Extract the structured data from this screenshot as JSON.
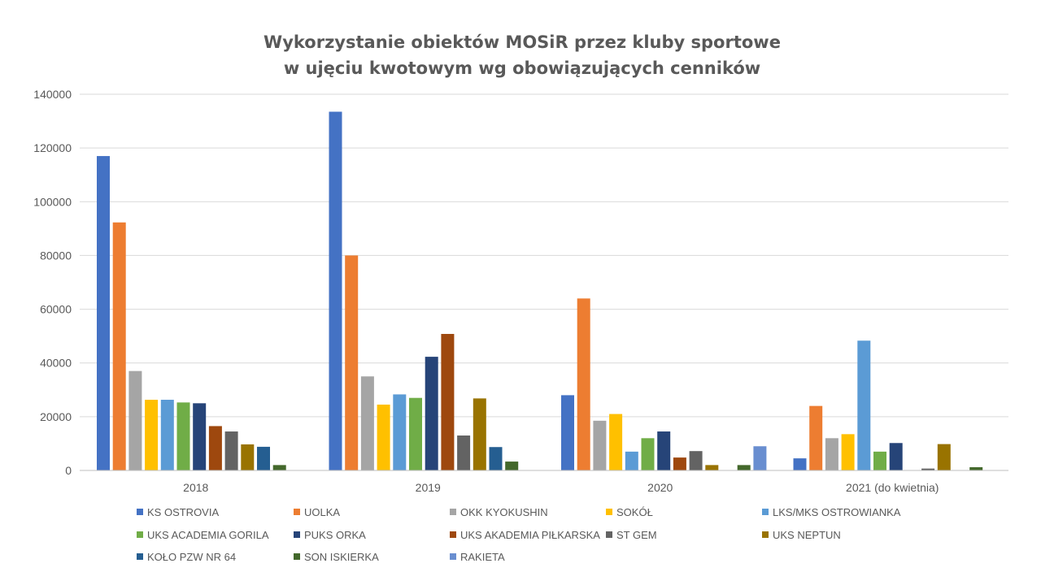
{
  "chart_data": {
    "type": "bar",
    "title": "Wykorzystanie obiektów MOSiR przez kluby sportowe",
    "subtitle": "w ujęciu kwotowym wg obowiązujących cenników",
    "xlabel": "",
    "ylabel": "",
    "ylim": [
      0,
      140000
    ],
    "yticks": [
      "0",
      "20000",
      "40000",
      "60000",
      "80000",
      "100000",
      "120000",
      "140000"
    ],
    "grid": true,
    "legend_position": "bottom",
    "categories": [
      "2018",
      "2019",
      "2020",
      "2021 (do kwietnia)"
    ],
    "series": [
      {
        "name": "KS OSTROVIA",
        "color": "#4472C4",
        "values": [
          117000,
          133500,
          28000,
          4500
        ]
      },
      {
        "name": "UOLKA",
        "color": "#ED7D31",
        "values": [
          92300,
          80000,
          64000,
          24000
        ]
      },
      {
        "name": "OKK KYOKUSHIN",
        "color": "#A5A5A5",
        "values": [
          37000,
          35000,
          18500,
          12000
        ]
      },
      {
        "name": "SOKÓŁ",
        "color": "#FFC000",
        "values": [
          26300,
          24500,
          21000,
          13500
        ]
      },
      {
        "name": "LKS/MKS OSTROWIANKA",
        "color": "#5B9BD5",
        "values": [
          26300,
          28300,
          7000,
          48300
        ]
      },
      {
        "name": "UKS ACADEMIA GORILA",
        "color": "#70AD47",
        "values": [
          25300,
          27000,
          12000,
          7000
        ]
      },
      {
        "name": "PUKS ORKA",
        "color": "#264478",
        "values": [
          25000,
          42300,
          14500,
          10200
        ]
      },
      {
        "name": "UKS AKADEMIA PIŁKARSKA",
        "color": "#9E480E",
        "values": [
          16500,
          50800,
          4800,
          0
        ]
      },
      {
        "name": "ST GEM",
        "color": "#636363",
        "values": [
          14500,
          13000,
          7200,
          700
        ]
      },
      {
        "name": "UKS NEPTUN",
        "color": "#997300",
        "values": [
          9700,
          26800,
          2000,
          9800
        ]
      },
      {
        "name": "KOŁO PZW NR 64",
        "color": "#255E91",
        "values": [
          8800,
          8700,
          0,
          0
        ]
      },
      {
        "name": "SON ISKIERKA",
        "color": "#43682B",
        "values": [
          2000,
          3300,
          2000,
          1200
        ]
      },
      {
        "name": "RAKIETA",
        "color": "#698ED0",
        "values": [
          0,
          0,
          9000,
          0
        ]
      }
    ]
  }
}
